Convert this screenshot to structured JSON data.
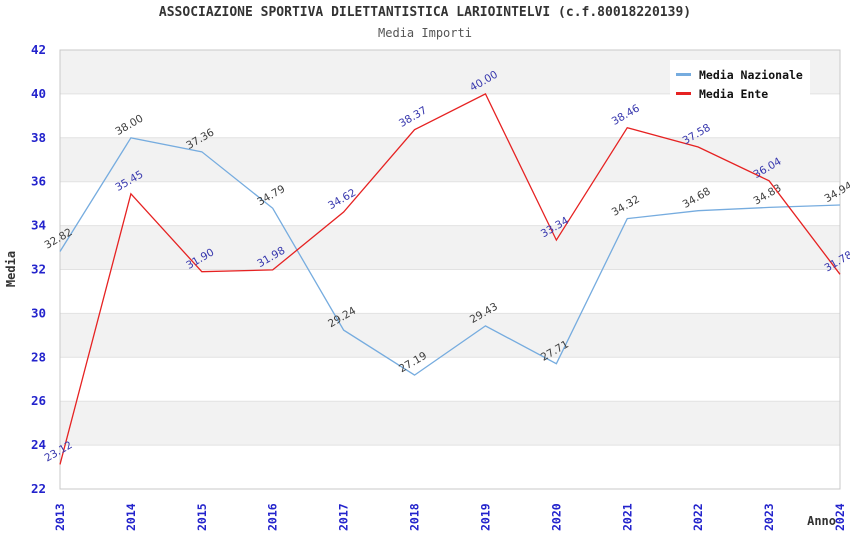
{
  "chart_data": {
    "type": "line",
    "title": "ASSOCIAZIONE SPORTIVA DILETTANTISTICA LARIOINTELVI (c.f.80018220139)",
    "subtitle": "Media Importi",
    "xlabel": "Anno",
    "ylabel": "Media",
    "categories": [
      "2013",
      "2014",
      "2015",
      "2016",
      "2017",
      "2018",
      "2019",
      "2020",
      "2021",
      "2022",
      "2023",
      "2024"
    ],
    "ylim": [
      22,
      42
    ],
    "ytick_step": 2,
    "grid": "horizontal-bands",
    "legend_position": "top-right",
    "series": [
      {
        "name": "Media Nazionale",
        "color": "#76acdf",
        "label_color": "#3d3d3d",
        "values": [
          32.82,
          38.0,
          37.36,
          34.79,
          29.24,
          27.19,
          29.43,
          27.71,
          34.32,
          34.68,
          34.83,
          34.94
        ]
      },
      {
        "name": "Media Ente",
        "color": "#e62222",
        "label_color": "#3636ad",
        "values": [
          23.12,
          35.45,
          31.9,
          31.98,
          34.62,
          38.37,
          40.0,
          33.34,
          38.46,
          37.58,
          36.04,
          31.78
        ]
      }
    ],
    "styles": {
      "axis_tick_color": "#2323cc",
      "band_fill": "#f2f2f2",
      "grid_line_color": "#e2e2e2",
      "plot_border_color": "#c9c9c9"
    }
  }
}
